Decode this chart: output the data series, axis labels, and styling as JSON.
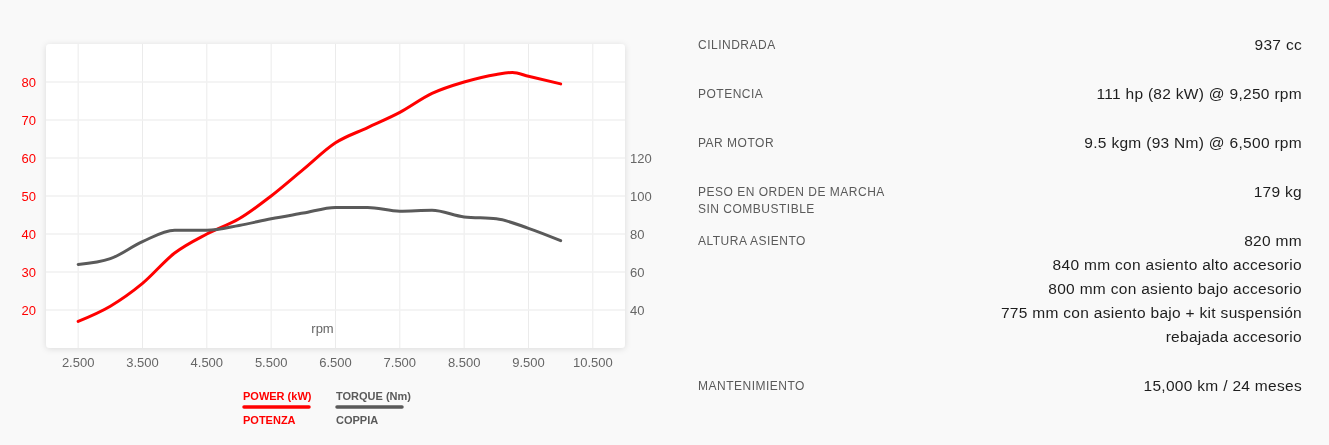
{
  "chart_data": [
    {
      "type": "line",
      "xlabel": "rpm",
      "xlim": [
        2,
        11
      ],
      "xticks": [
        {
          "value": 2.5,
          "label": "2.500"
        },
        {
          "value": 3.5,
          "label": "3.500"
        },
        {
          "value": 4.5,
          "label": "4.500"
        },
        {
          "value": 5.5,
          "label": "5.500"
        },
        {
          "value": 6.5,
          "label": "6.500"
        },
        {
          "value": 7.5,
          "label": "7.500"
        },
        {
          "value": 8.5,
          "label": "8.500"
        },
        {
          "value": 9.5,
          "label": "9.500"
        },
        {
          "value": 10.5,
          "label": "10.500"
        }
      ],
      "ylim": [
        10,
        90
      ],
      "yticks": [
        20,
        30,
        40,
        50,
        60,
        70,
        80
      ],
      "y2lim": [
        20,
        180
      ],
      "y2ticks": [
        40,
        60,
        80,
        100,
        120
      ],
      "grid": true,
      "legend": "bottom",
      "series": [
        {
          "name": "POWER (kW)\nPOTENZA",
          "color": "#ff0000",
          "x": [
            2.5,
            3,
            3.5,
            4,
            4.5,
            5,
            5.5,
            6,
            6.5,
            7,
            7.5,
            8,
            8.5,
            9,
            9.25,
            9.5,
            10
          ],
          "values": [
            17,
            21,
            27,
            35,
            40,
            44,
            50,
            57,
            64,
            68,
            72,
            77,
            80,
            82,
            82.5,
            81.5,
            79.5
          ]
        },
        {
          "name": "TORQUE (Nm)\nCOPPIA",
          "color": "#5a5a5a",
          "axis": "y2",
          "x": [
            2.5,
            3,
            3.5,
            4,
            4.5,
            5,
            5.5,
            6,
            6.5,
            7,
            7.5,
            8,
            8.5,
            9,
            9.5,
            10
          ],
          "values": [
            64,
            67,
            76,
            82,
            82,
            84.5,
            88,
            91,
            94,
            94,
            92,
            92.5,
            89,
            88,
            83,
            76.5
          ]
        }
      ]
    },
    {
      "type": "other",
      "categories": [
        "CILINDRADA",
        "POTENCIA",
        "PAR MOTOR",
        "PESO EN ORDEN DE MARCHA\nSIN COMBUSTIBLE",
        "ALTURA ASIENTO",
        "MANTENIMIENTO"
      ],
      "value_labels": [
        "937 cc",
        "111 hp (82 kW) @ 9,250 rpm",
        "9.5 kgm (93 Nm) @ 6,500 rpm",
        "179 kg",
        "820 mm\n840 mm con asiento alto accesorio\n800 mm con asiento bajo accesorio\n775 mm con asiento bajo + kit suspensión\nrebajada accesorio",
        "15,000 km / 24 meses"
      ]
    }
  ]
}
